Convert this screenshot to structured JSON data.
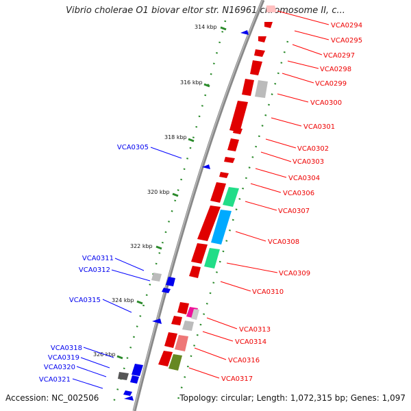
{
  "title": "Vibrio cholerae O1 biovar eltor str. N16961 chromosome II, c...",
  "accession": "Accession: NC_002506",
  "topology": "Topology: circular; Length: 1,072,315 bp; Genes: 1,097",
  "colors": {
    "forward": "#ff0000",
    "reverse": "#0000ff",
    "backbone": "#888888",
    "ticks": "#008000"
  },
  "ticks": [
    "314 kbp",
    "316 kbp",
    "318 kbp",
    "320 kbp",
    "322 kbp",
    "324 kbp",
    "326 kbp"
  ],
  "labels_right": [
    "VCA0294",
    "VCA0295",
    "VCA0297",
    "VCA0298",
    "VCA0299",
    "VCA0300",
    "VCA0301",
    "VCA0302",
    "VCA0303",
    "VCA0304",
    "VCA0306",
    "VCA0307",
    "VCA0308",
    "VCA0309",
    "VCA0310",
    "VCA0313",
    "VCA0314",
    "VCA0316",
    "VCA0317"
  ],
  "labels_left": [
    "VCA0305",
    "VCA0311",
    "VCA0312",
    "VCA0315",
    "VCA0318",
    "VCA0319",
    "VCA0320",
    "VCA0321"
  ]
}
